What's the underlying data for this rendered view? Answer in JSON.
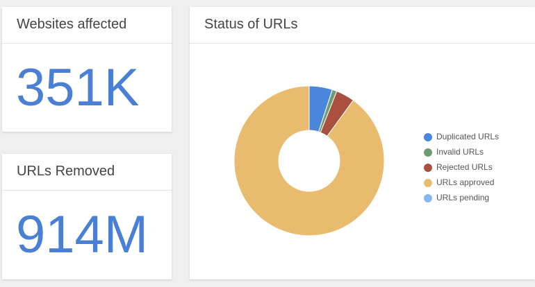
{
  "cards": [
    {
      "title": "Websites affected",
      "value": "351K"
    },
    {
      "title": "URLs Removed",
      "value": "914M"
    }
  ],
  "chart_data": {
    "type": "donut",
    "title": "Status of URLs",
    "categories": [
      "Duplicated URLs",
      "Invalid URLs",
      "Rejected URLs",
      "URLs approved",
      "URLs pending"
    ],
    "values": [
      5,
      1,
      4,
      90,
      0
    ],
    "colors": [
      "#4a86d9",
      "#6f9c73",
      "#a9503f",
      "#e8bb6f",
      "#86b9ef"
    ],
    "legend": "right"
  }
}
